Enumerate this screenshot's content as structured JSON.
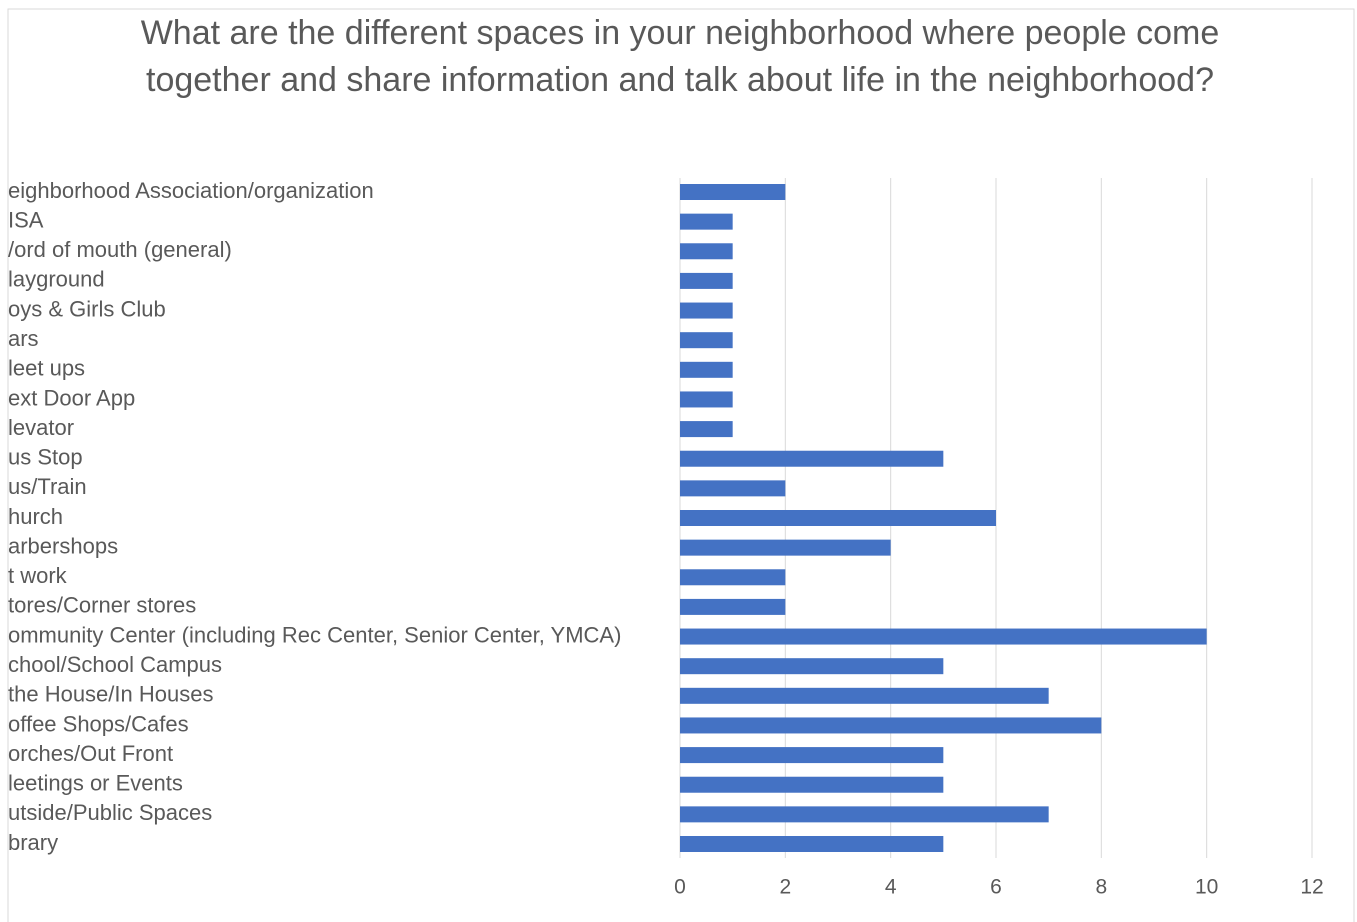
{
  "chart_data": {
    "type": "barh",
    "title": "What are the different spaces in your neighborhood where people come together and share information and talk about life in the neighborhood?",
    "categories": [
      "eighborhood Association/organization",
      "ISA",
      "/ord of mouth (general)",
      "layground",
      "oys & Girls Club",
      "ars",
      "leet ups",
      "ext Door App",
      "levator",
      "us Stop",
      "us/Train",
      "hurch",
      "arbershops",
      "t work",
      "tores/Corner stores",
      "ommunity Center (including Rec Center, Senior Center, YMCA)",
      "chool/School Campus",
      "the House/In Houses",
      "offee Shops/Cafes",
      "orches/Out Front",
      "leetings or Events",
      "utside/Public Spaces",
      "brary"
    ],
    "values": [
      2,
      1,
      1,
      1,
      1,
      1,
      1,
      1,
      1,
      5,
      2,
      6,
      4,
      2,
      2,
      10,
      5,
      7,
      8,
      5,
      5,
      7,
      5
    ],
    "color": "#4472c4",
    "xlim": [
      0,
      12
    ],
    "xticks": [
      0,
      2,
      4,
      6,
      8,
      10,
      12
    ],
    "grid": true
  }
}
